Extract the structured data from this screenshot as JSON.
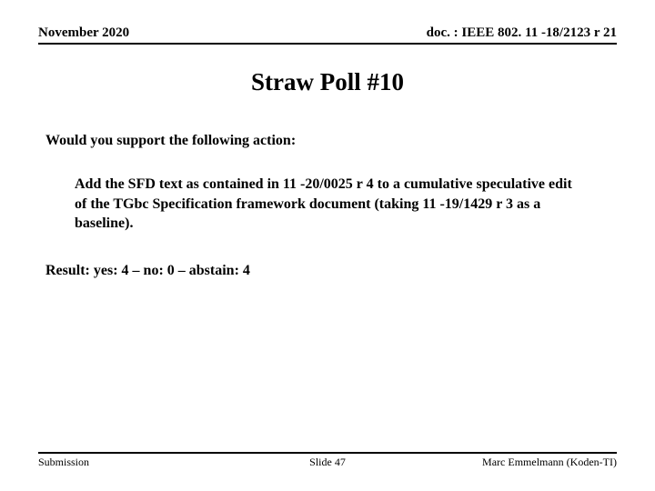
{
  "header": {
    "date": "November 2020",
    "docref": "doc. : IEEE 802. 11 -18/2123 r 21"
  },
  "title": "Straw Poll #10",
  "question": "Would you support the following action:",
  "body": "Add the SFD text as contained in 11 -20/0025 r 4 to a cumulative speculative edit of the TGbc Specification framework document (taking 11 -19/1429 r 3 as a baseline).",
  "result": "Result:  yes:  4 – no: 0  –  abstain: 4",
  "footer": {
    "left": "Submission",
    "center": "Slide 47",
    "right": "Marc Emmelmann (Koden-TI)"
  }
}
